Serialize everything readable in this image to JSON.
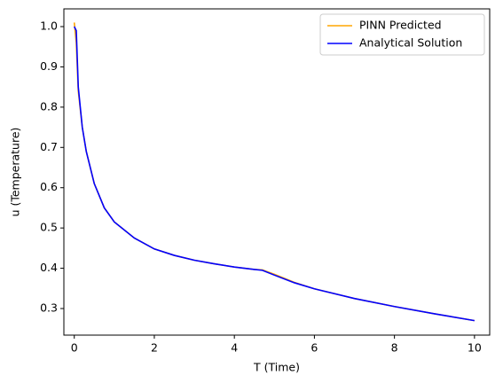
{
  "chart_data": {
    "type": "line",
    "x_label": "T (Time)",
    "y_label": "u (Temperature)",
    "x": [
      0,
      0.05,
      0.1,
      0.2,
      0.3,
      0.5,
      0.75,
      1,
      1.5,
      2,
      2.5,
      3,
      3.5,
      4,
      4.5,
      4.7,
      5,
      5.5,
      6,
      7,
      8,
      9,
      10
    ],
    "series": [
      {
        "name": "PINN Predicted",
        "color": "#ffa500",
        "values": [
          1.01,
          0.96,
          0.84,
          0.75,
          0.69,
          0.61,
          0.55,
          0.515,
          0.475,
          0.448,
          0.432,
          0.42,
          0.411,
          0.403,
          0.397,
          0.396,
          0.385,
          0.365,
          0.349,
          0.325,
          0.305,
          0.287,
          0.27
        ]
      },
      {
        "name": "Analytical Solution",
        "color": "#0000ff",
        "values": [
          1.0,
          0.99,
          0.85,
          0.75,
          0.69,
          0.61,
          0.55,
          0.515,
          0.475,
          0.448,
          0.432,
          0.42,
          0.411,
          0.403,
          0.397,
          0.395,
          0.383,
          0.364,
          0.349,
          0.325,
          0.305,
          0.287,
          0.27
        ]
      }
    ],
    "xlim": [
      -0.26,
      10.38
    ],
    "ylim": [
      0.234,
      1.044
    ],
    "xticks": [
      0,
      2,
      4,
      6,
      8,
      10
    ],
    "yticks": [
      0.3,
      0.4,
      0.5,
      0.6,
      0.7,
      0.8,
      0.9,
      {
        "value": 1.0,
        "label": "1.0"
      }
    ],
    "legend": "upper right"
  }
}
